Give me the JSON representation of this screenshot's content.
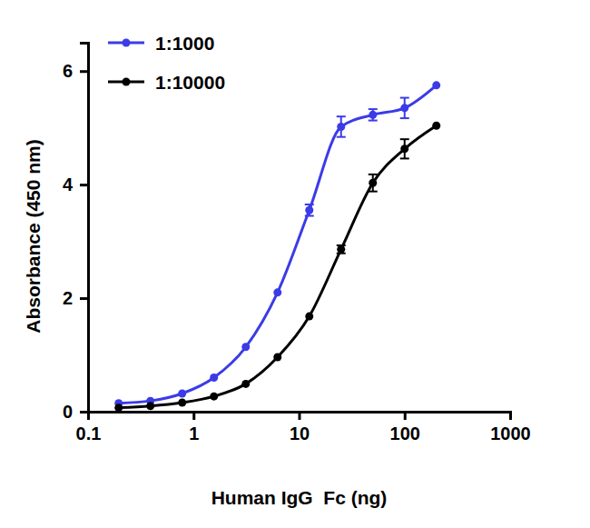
{
  "chart_data": {
    "type": "line",
    "x_label": "Human IgG  Fc (ng)",
    "y_label": "Absorbance (450 nm)",
    "x": [
      0.195,
      0.39,
      0.78,
      1.56,
      3.125,
      6.25,
      12.5,
      25,
      50,
      100,
      200
    ],
    "series": [
      {
        "name": "1:1000",
        "color": "#3b3be8",
        "marker": "circle",
        "line_style": "solid",
        "values": [
          0.15,
          0.19,
          0.32,
          0.6,
          1.14,
          2.1,
          3.55,
          5.02,
          5.23,
          5.35,
          5.75
        ],
        "errors": [
          null,
          null,
          null,
          null,
          null,
          null,
          0.1,
          0.18,
          0.1,
          0.18,
          null
        ]
      },
      {
        "name": "1:10000",
        "color": "#000000",
        "marker": "circle",
        "line_style": "solid",
        "values": [
          0.07,
          0.1,
          0.16,
          0.27,
          0.49,
          0.96,
          1.68,
          2.86,
          4.03,
          4.63,
          5.04
        ],
        "errors": [
          null,
          null,
          null,
          null,
          null,
          null,
          null,
          0.07,
          0.15,
          0.17,
          null
        ]
      }
    ],
    "log": "x",
    "xlim": [
      0.1,
      1000
    ],
    "xticks": [
      0.1,
      1,
      10,
      100,
      1000
    ],
    "ylim": [
      0,
      6.5
    ],
    "yticks": [
      0,
      2,
      4,
      6
    ],
    "grid": false,
    "legend": "upper left"
  }
}
